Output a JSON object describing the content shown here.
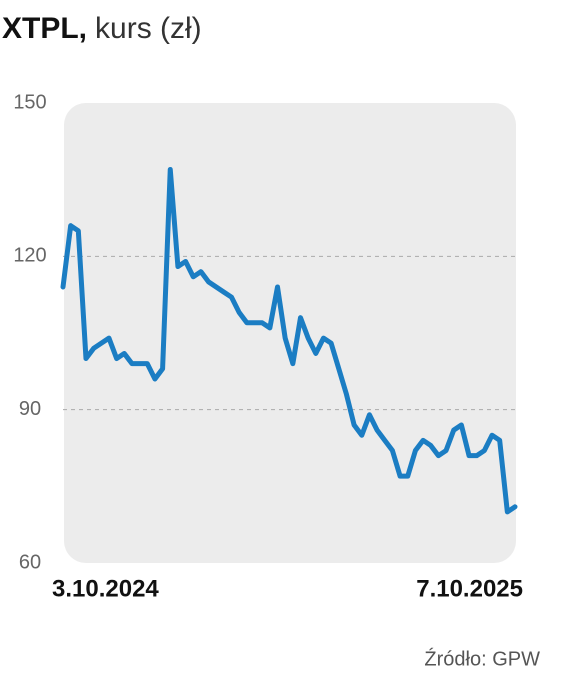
{
  "chart_data": {
    "type": "line",
    "title": "XTPL,",
    "subtitle": "kurs (zł)",
    "source": "Źródło: GPW",
    "categories": [
      "3.10.2024",
      null,
      null,
      null,
      null,
      null,
      null,
      null,
      null,
      null,
      null,
      null,
      null,
      null,
      null,
      null,
      null,
      null,
      null,
      null,
      null,
      null,
      null,
      null,
      null,
      null,
      null,
      null,
      null,
      null,
      null,
      null,
      null,
      null,
      null,
      null,
      null,
      null,
      null,
      null,
      null,
      null,
      null,
      null,
      null,
      null,
      null,
      null,
      null,
      null,
      null,
      null,
      null,
      null,
      null,
      null,
      null,
      null,
      null,
      "7.10.2025"
    ],
    "series": [
      {
        "name": "XTPL",
        "color": "#1b7dc3",
        "values": [
          114,
          126,
          125,
          100,
          102,
          103,
          104,
          100,
          101,
          99,
          99,
          99,
          96,
          98,
          137,
          118,
          119,
          116,
          117,
          115,
          114,
          113,
          112,
          109,
          107,
          107,
          107,
          106,
          114,
          104,
          99,
          108,
          104,
          101,
          104,
          103,
          98,
          93,
          87,
          85,
          89,
          86,
          84,
          82,
          77,
          77,
          82,
          84,
          83,
          81,
          82,
          86,
          87,
          81,
          81,
          82,
          85,
          84,
          70,
          71
        ]
      }
    ],
    "ylim": [
      60,
      150
    ],
    "yticks": [
      60,
      90,
      120,
      150
    ],
    "grid": true
  }
}
